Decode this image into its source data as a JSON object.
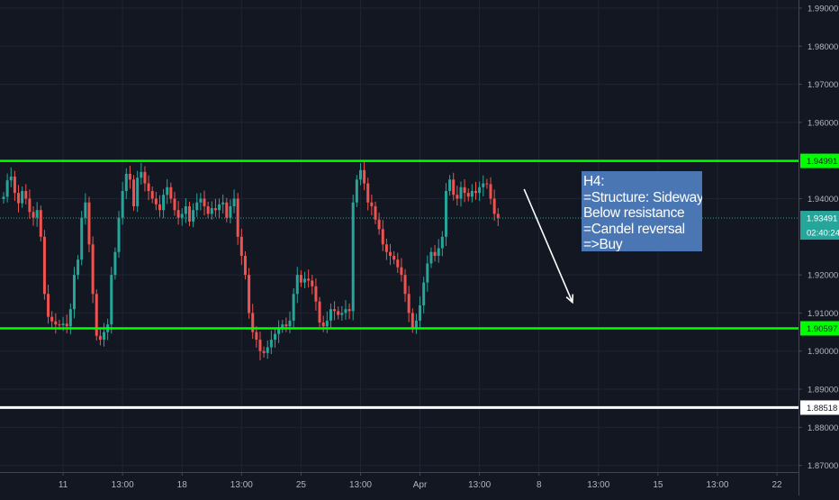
{
  "annotation": {
    "lines": [
      "H4:",
      "=Structure: Sideways",
      "Below resistance",
      "=Candel reversal",
      "=>Buy"
    ],
    "background": "#4a77b4"
  },
  "colors": {
    "background": "#131722",
    "grid": "#1f2433",
    "bullish": "#26a69a",
    "bearish": "#ef5350",
    "level_line": "#00ff00",
    "support_line_extra": "#ffffff",
    "current_price_line": "#26a69a",
    "axis_text": "#b2b5be"
  },
  "chart_data": {
    "type": "candlestick",
    "title": "",
    "price_scale": {
      "range": [
        1.862,
        1.992
      ],
      "tick_labels": [
        "1.99000",
        "1.98000",
        "1.97000",
        "1.96000",
        "1.94000",
        "1.92000",
        "1.91000",
        "1.90000",
        "1.89000",
        "1.88000",
        "1.87000"
      ]
    },
    "time_axis": {
      "tick_labels": [
        "11",
        "13:00",
        "18",
        "13:00",
        "25",
        "13:00",
        "Apr",
        "13:00",
        "8",
        "13:00",
        "15",
        "13:00",
        "22"
      ],
      "tick_bars": [
        16,
        32,
        48,
        64,
        80,
        96,
        112,
        128,
        144,
        160,
        176,
        192,
        208
      ]
    },
    "horizontal_levels": [
      {
        "label": "1.94991",
        "value": 1.94991,
        "color": "#00ff00",
        "style": "solid",
        "role": "resistance"
      },
      {
        "label": "1.90597",
        "value": 1.90597,
        "color": "#00ff00",
        "style": "solid",
        "role": "support"
      },
      {
        "label": "1.88518",
        "value": 1.88518,
        "color": "#ffffff",
        "style": "solid",
        "role": "level"
      }
    ],
    "current_price": {
      "label": "1.93491",
      "value": 1.93491,
      "countdown": "02:40:24",
      "color": "#26a69a"
    },
    "arrow": {
      "from": {
        "bar": 140,
        "price": 1.9425
      },
      "to": {
        "bar": 153,
        "price": 1.9128
      },
      "color": "#ffffff"
    },
    "closes": [
      1.9405,
      1.9448,
      1.9458,
      1.9415,
      1.9388,
      1.942,
      1.94,
      1.9365,
      1.935,
      1.937,
      1.93,
      1.915,
      1.909,
      1.9078,
      1.907,
      1.9068,
      1.9072,
      1.9065,
      1.911,
      1.92,
      1.924,
      1.935,
      1.939,
      1.928,
      1.915,
      1.904,
      1.903,
      1.905,
      1.907,
      1.92,
      1.926,
      1.935,
      1.942,
      1.9465,
      1.945,
      1.938,
      1.9455,
      1.947,
      1.944,
      1.942,
      1.94,
      1.9385,
      1.937,
      1.941,
      1.943,
      1.94,
      1.937,
      1.935,
      1.936,
      1.938,
      1.934,
      1.937,
      1.939,
      1.94,
      1.938,
      1.936,
      1.9375,
      1.937,
      1.9385,
      1.939,
      1.935,
      1.938,
      1.94,
      1.93,
      1.925,
      1.92,
      1.91,
      1.905,
      1.903,
      1.9,
      1.8995,
      1.901,
      1.903,
      1.9045,
      1.906,
      1.907,
      1.9065,
      1.908,
      1.915,
      1.92,
      1.918,
      1.919,
      1.9185,
      1.917,
      1.913,
      1.9075,
      1.9065,
      1.908,
      1.911,
      1.9105,
      1.9095,
      1.91,
      1.911,
      1.9105,
      1.939,
      1.945,
      1.9475,
      1.944,
      1.939,
      1.938,
      1.9345,
      1.932,
      1.928,
      1.926,
      1.925,
      1.924,
      1.922,
      1.92,
      1.915,
      1.91,
      1.906,
      1.908,
      1.912,
      1.918,
      1.923,
      1.926,
      1.925,
      1.927,
      1.93,
      1.942,
      1.945,
      1.941,
      1.94,
      1.943,
      1.9415,
      1.9405,
      1.942,
      1.9415,
      1.943,
      1.944,
      1.9438,
      1.94,
      1.936,
      1.9349
    ]
  }
}
